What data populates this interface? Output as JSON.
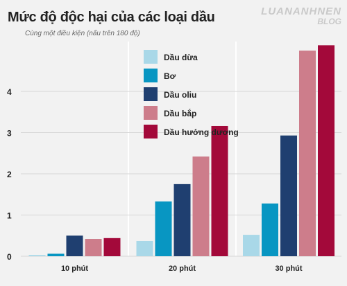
{
  "title": "Mức độ độc hại của các loại dầu",
  "subtitle": "Cùng một điều kiện (nấu trên 180 độ)",
  "watermark": {
    "line1": "LUANANHNEN",
    "line2": "BLOG"
  },
  "colors": {
    "background": "#f2f2f2",
    "grid": "#d6d6d6",
    "divider": "#ffffff",
    "axis_text": "#222222"
  },
  "chart_data": {
    "type": "bar",
    "title": "Mức độ độc hại của các loại dầu",
    "subtitle": "Cùng một điều kiện (nấu trên 180 độ)",
    "categories": [
      "10 phút",
      "20 phút",
      "30 phút"
    ],
    "ylim": [
      0,
      5.2
    ],
    "yticks": [
      "0",
      "1",
      "2",
      "3",
      "4"
    ],
    "grid": true,
    "legend_position": "top-center",
    "series": [
      {
        "name": "Dầu dừa",
        "color": "#a9d8e8",
        "values": [
          0.03,
          0.37,
          0.52
        ]
      },
      {
        "name": "Bơ",
        "color": "#0896c2",
        "values": [
          0.06,
          1.33,
          1.28
        ]
      },
      {
        "name": "Dầu oliu",
        "color": "#1f3f70",
        "values": [
          0.5,
          1.75,
          2.93
        ]
      },
      {
        "name": "Dầu bắp",
        "color": "#cd7d8b",
        "values": [
          0.42,
          2.42,
          4.99
        ]
      },
      {
        "name": "Dầu hướng dương",
        "color": "#a3093a",
        "values": [
          0.44,
          3.16,
          5.12
        ]
      }
    ]
  }
}
